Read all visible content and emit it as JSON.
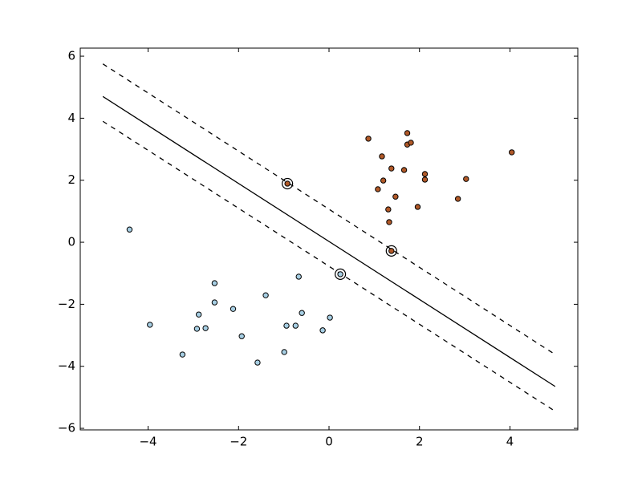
{
  "chart_data": {
    "type": "scatter",
    "xlim": [
      -5.5,
      5.5
    ],
    "ylim": [
      -6.05,
      6.26
    ],
    "xticks": [
      {
        "value": -4,
        "label": "−4"
      },
      {
        "value": -2,
        "label": "−2"
      },
      0,
      2,
      4
    ],
    "yticks": [
      {
        "value": -6,
        "label": "−6"
      },
      {
        "value": -4,
        "label": "−4"
      },
      {
        "value": -2,
        "label": "−2"
      },
      0,
      2,
      4,
      6
    ],
    "series": [
      {
        "color": "#a6cee3",
        "x": [
          -4.41,
          -3.96,
          -3.24,
          -2.88,
          -2.92,
          -2.73,
          -2.53,
          -2.53,
          -2.12,
          -1.93,
          -1.58,
          -1.4,
          -0.67,
          -0.94,
          -0.74,
          -0.6,
          -0.99,
          -0.14,
          0.02,
          0.25
        ],
        "y": [
          0.41,
          -2.66,
          -3.62,
          -2.33,
          -2.79,
          -2.77,
          -1.32,
          -1.94,
          -2.15,
          -3.03,
          -3.88,
          -1.71,
          -1.11,
          -2.69,
          -2.69,
          -2.28,
          -3.54,
          -2.84,
          -2.43,
          -1.03
        ]
      },
      {
        "color": "#b15928",
        "x": [
          0.87,
          1.73,
          1.73,
          1.81,
          1.17,
          1.38,
          1.66,
          2.12,
          2.12,
          3.03,
          4.04,
          1.2,
          1.08,
          1.47,
          2.85,
          1.96,
          1.31,
          1.33,
          -0.92,
          1.38
        ],
        "y": [
          3.34,
          3.52,
          3.15,
          3.21,
          2.77,
          2.38,
          2.33,
          2.2,
          2.02,
          2.04,
          2.9,
          1.99,
          1.71,
          1.47,
          1.4,
          1.14,
          1.06,
          0.65,
          1.89,
          -0.28
        ]
      }
    ],
    "support_vectors": {
      "x": [
        -0.92,
        1.38,
        0.25
      ],
      "y": [
        1.89,
        -0.28,
        -1.03
      ]
    },
    "lines": [
      {
        "style": "solid",
        "x": [
          -5,
          5
        ],
        "y": [
          4.7,
          -4.65
        ]
      },
      {
        "style": "dashed",
        "x": [
          -5,
          5
        ],
        "y": [
          5.75,
          -3.62
        ]
      },
      {
        "style": "dashed",
        "x": [
          -5,
          5
        ],
        "y": [
          3.9,
          -5.45
        ]
      }
    ]
  }
}
